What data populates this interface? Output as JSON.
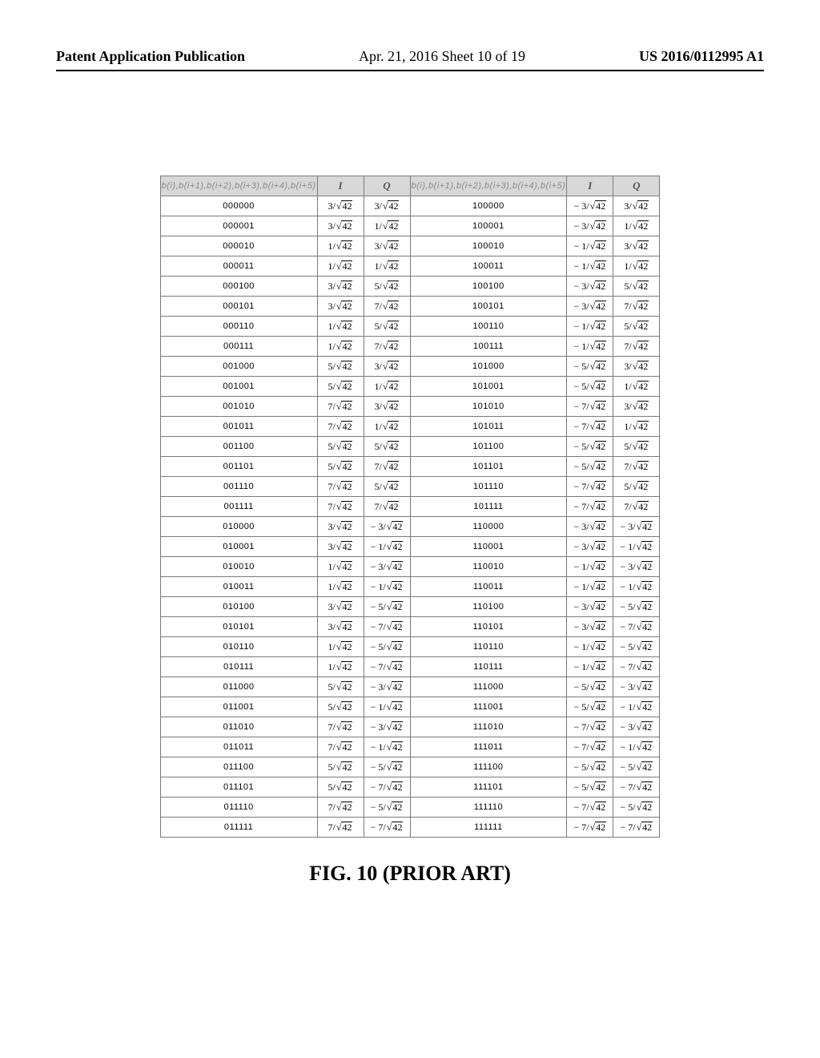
{
  "header": {
    "left": "Patent Application Publication",
    "mid": "Apr. 21, 2016  Sheet 10 of 19",
    "right": "US 2016/0112995 A1"
  },
  "caption": "FIG. 10 (PRIOR ART)",
  "table": {
    "header_bits": "b(i),b(i+1),b(i+2),b(i+3),b(i+4),b(i+5)",
    "header_I": "I",
    "header_Q": "Q",
    "radicand": "42",
    "rows": [
      {
        "b1": "000000",
        "i1": "3",
        "q1": "3",
        "b2": "100000",
        "i2": "−3",
        "q2": "3"
      },
      {
        "b1": "000001",
        "i1": "3",
        "q1": "1",
        "b2": "100001",
        "i2": "−3",
        "q2": "1"
      },
      {
        "b1": "000010",
        "i1": "1",
        "q1": "3",
        "b2": "100010",
        "i2": "−1",
        "q2": "3"
      },
      {
        "b1": "000011",
        "i1": "1",
        "q1": "1",
        "b2": "100011",
        "i2": "−1",
        "q2": "1"
      },
      {
        "b1": "000100",
        "i1": "3",
        "q1": "5",
        "b2": "100100",
        "i2": "−3",
        "q2": "5"
      },
      {
        "b1": "000101",
        "i1": "3",
        "q1": "7",
        "b2": "100101",
        "i2": "−3",
        "q2": "7"
      },
      {
        "b1": "000110",
        "i1": "1",
        "q1": "5",
        "b2": "100110",
        "i2": "−1",
        "q2": "5"
      },
      {
        "b1": "000111",
        "i1": "1",
        "q1": "7",
        "b2": "100111",
        "i2": "−1",
        "q2": "7"
      },
      {
        "b1": "001000",
        "i1": "5",
        "q1": "3",
        "b2": "101000",
        "i2": "−5",
        "q2": "3"
      },
      {
        "b1": "001001",
        "i1": "5",
        "q1": "1",
        "b2": "101001",
        "i2": "−5",
        "q2": "1"
      },
      {
        "b1": "001010",
        "i1": "7",
        "q1": "3",
        "b2": "101010",
        "i2": "−7",
        "q2": "3"
      },
      {
        "b1": "001011",
        "i1": "7",
        "q1": "1",
        "b2": "101011",
        "i2": "−7",
        "q2": "1"
      },
      {
        "b1": "001100",
        "i1": "5",
        "q1": "5",
        "b2": "101100",
        "i2": "−5",
        "q2": "5"
      },
      {
        "b1": "001101",
        "i1": "5",
        "q1": "7",
        "b2": "101101",
        "i2": "−5",
        "q2": "7"
      },
      {
        "b1": "001110",
        "i1": "7",
        "q1": "5",
        "b2": "101110",
        "i2": "−7",
        "q2": "5"
      },
      {
        "b1": "001111",
        "i1": "7",
        "q1": "7",
        "b2": "101111",
        "i2": "−7",
        "q2": "7"
      },
      {
        "b1": "010000",
        "i1": "3",
        "q1": "−3",
        "b2": "110000",
        "i2": "−3",
        "q2": "−3"
      },
      {
        "b1": "010001",
        "i1": "3",
        "q1": "−1",
        "b2": "110001",
        "i2": "−3",
        "q2": "−1"
      },
      {
        "b1": "010010",
        "i1": "1",
        "q1": "−3",
        "b2": "110010",
        "i2": "−1",
        "q2": "−3"
      },
      {
        "b1": "010011",
        "i1": "1",
        "q1": "−1",
        "b2": "110011",
        "i2": "−1",
        "q2": "−1"
      },
      {
        "b1": "010100",
        "i1": "3",
        "q1": "−5",
        "b2": "110100",
        "i2": "−3",
        "q2": "−5"
      },
      {
        "b1": "010101",
        "i1": "3",
        "q1": "−7",
        "b2": "110101",
        "i2": "−3",
        "q2": "−7"
      },
      {
        "b1": "010110",
        "i1": "1",
        "q1": "−5",
        "b2": "110110",
        "i2": "−1",
        "q2": "−5"
      },
      {
        "b1": "010111",
        "i1": "1",
        "q1": "−7",
        "b2": "110111",
        "i2": "−1",
        "q2": "−7"
      },
      {
        "b1": "011000",
        "i1": "5",
        "q1": "−3",
        "b2": "111000",
        "i2": "−5",
        "q2": "−3"
      },
      {
        "b1": "011001",
        "i1": "5",
        "q1": "−1",
        "b2": "111001",
        "i2": "−5",
        "q2": "−1"
      },
      {
        "b1": "011010",
        "i1": "7",
        "q1": "−3",
        "b2": "111010",
        "i2": "−7",
        "q2": "−3"
      },
      {
        "b1": "011011",
        "i1": "7",
        "q1": "−1",
        "b2": "111011",
        "i2": "−7",
        "q2": "−1"
      },
      {
        "b1": "011100",
        "i1": "5",
        "q1": "−5",
        "b2": "111100",
        "i2": "−5",
        "q2": "−5"
      },
      {
        "b1": "011101",
        "i1": "5",
        "q1": "−7",
        "b2": "111101",
        "i2": "−5",
        "q2": "−7"
      },
      {
        "b1": "011110",
        "i1": "7",
        "q1": "−5",
        "b2": "111110",
        "i2": "−7",
        "q2": "−5"
      },
      {
        "b1": "011111",
        "i1": "7",
        "q1": "−7",
        "b2": "111111",
        "i2": "−7",
        "q2": "−7"
      }
    ]
  }
}
